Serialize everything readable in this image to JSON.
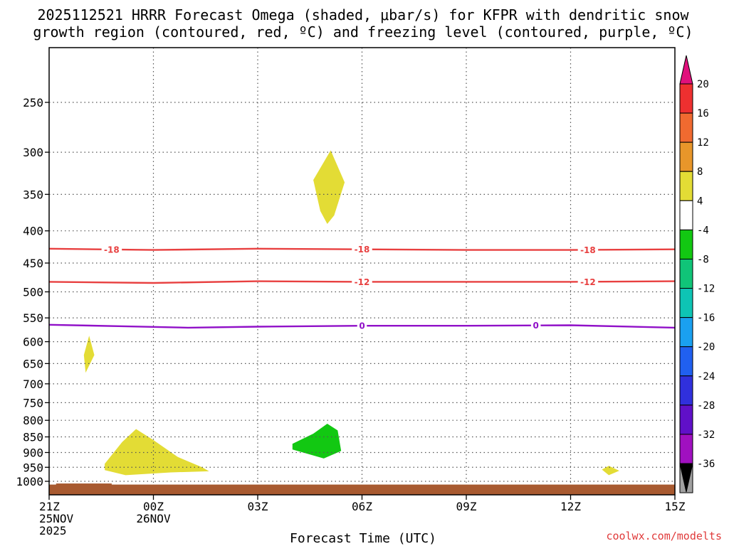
{
  "chart_data": {
    "type": "contour",
    "title_line1": "2025112521 HRRR Forecast Omega (shaded, μbar/s) for KFPR with dendritic snow",
    "title_line2": "growth region (contoured, red, ºC) and freezing level (contoured, purple, ºC)",
    "xlabel": "Forecast Time (UTC)",
    "credit": "coolwx.com/modelts",
    "x_range_hours": [
      0,
      18
    ],
    "x_ticks": [
      {
        "h": 0,
        "lines": [
          "21Z",
          "25NOV",
          "2025"
        ]
      },
      {
        "h": 3,
        "lines": [
          "00Z",
          "26NOV"
        ]
      },
      {
        "h": 6,
        "lines": [
          "03Z"
        ]
      },
      {
        "h": 9,
        "lines": [
          "06Z"
        ]
      },
      {
        "h": 12,
        "lines": [
          "09Z"
        ]
      },
      {
        "h": 15,
        "lines": [
          "12Z"
        ]
      },
      {
        "h": 18,
        "lines": [
          "15Z"
        ]
      }
    ],
    "y_axis": "pressure (hPa), reversed log scale",
    "y_range": [
      1025,
      200
    ],
    "y_ticks": [
      250,
      300,
      350,
      400,
      450,
      500,
      550,
      600,
      650,
      700,
      750,
      800,
      850,
      900,
      950,
      1000
    ],
    "grid": true,
    "colorbar": {
      "levels": [
        20,
        16,
        12,
        8,
        4,
        -4,
        -8,
        -12,
        -16,
        -20,
        -24,
        -28,
        -32,
        -36
      ],
      "colors": [
        "#ee3030",
        "#f06a30",
        "#e8962a",
        "#e3b72c",
        "#e3dc35",
        "#ffffff",
        "#12c812",
        "#10c478",
        "#0ec4b4",
        "#1aa0f0",
        "#2060f0",
        "#3030dc",
        "#6010c8",
        "#a010c0",
        "#a0a0a0"
      ],
      "over_color": "#e0107c",
      "under_color": "#000000"
    },
    "contours": [
      {
        "value": -18,
        "label": "-18",
        "color": "#e84040",
        "points": [
          [
            0,
            427
          ],
          [
            3,
            429
          ],
          [
            6,
            427
          ],
          [
            9,
            428
          ],
          [
            12,
            429
          ],
          [
            15,
            429
          ],
          [
            18,
            428
          ]
        ],
        "label_at": [
          1.8,
          9.0,
          15.5
        ]
      },
      {
        "value": -12,
        "label": "-12",
        "color": "#e84040",
        "points": [
          [
            0,
            482
          ],
          [
            3,
            484
          ],
          [
            6,
            481
          ],
          [
            9,
            482
          ],
          [
            12,
            482
          ],
          [
            15,
            482
          ],
          [
            18,
            481
          ]
        ],
        "label_at": [
          9.0,
          15.5
        ]
      },
      {
        "value": 0,
        "label": "0",
        "color": "#9010c8",
        "points": [
          [
            0,
            564
          ],
          [
            2,
            567
          ],
          [
            4,
            570
          ],
          [
            6,
            568
          ],
          [
            9,
            566
          ],
          [
            12,
            566
          ],
          [
            15,
            565
          ],
          [
            18,
            570
          ]
        ],
        "label_at": [
          9.0,
          14.0
        ]
      }
    ],
    "shaded_regions": [
      {
        "value_range": [
          4,
          8
        ],
        "color": "#e3dc35",
        "points": [
          [
            7.6,
            332
          ],
          [
            8.1,
            298
          ],
          [
            8.5,
            335
          ],
          [
            8.2,
            378
          ],
          [
            8.0,
            390
          ],
          [
            7.8,
            372
          ]
        ]
      },
      {
        "value_range": [
          4,
          8
        ],
        "color": "#e3dc35",
        "points": [
          [
            1.0,
            630
          ],
          [
            1.15,
            587
          ],
          [
            1.3,
            630
          ],
          [
            1.05,
            672
          ]
        ]
      },
      {
        "value_range": [
          4,
          8
        ],
        "color": "#e3dc35",
        "points": [
          [
            1.6,
            938
          ],
          [
            2.1,
            866
          ],
          [
            2.5,
            826
          ],
          [
            3.0,
            860
          ],
          [
            3.7,
            915
          ],
          [
            4.4,
            950
          ],
          [
            4.6,
            964
          ],
          [
            3.5,
            968
          ],
          [
            2.2,
            978
          ],
          [
            1.6,
            960
          ]
        ]
      },
      {
        "value_range": [
          -8,
          -4
        ],
        "color": "#12c812",
        "points": [
          [
            7.0,
            872
          ],
          [
            7.6,
            840
          ],
          [
            8.0,
            810
          ],
          [
            8.3,
            830
          ],
          [
            8.4,
            895
          ],
          [
            7.9,
            920
          ],
          [
            7.0,
            890
          ]
        ]
      },
      {
        "value_range": [
          4,
          8
        ],
        "color": "#e3dc35",
        "points": [
          [
            15.9,
            958
          ],
          [
            16.1,
            945
          ],
          [
            16.4,
            962
          ],
          [
            16.1,
            978
          ]
        ]
      }
    ],
    "ground": {
      "color": "#a85a30",
      "top_hpa": 1012,
      "left_bump_hpa": 1008,
      "left_bump_hours": [
        0.2,
        1.8
      ]
    }
  }
}
